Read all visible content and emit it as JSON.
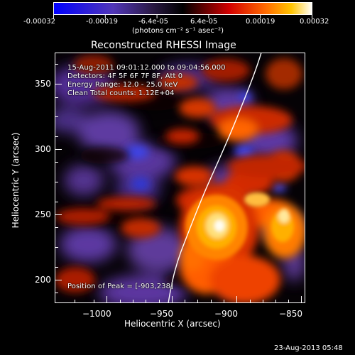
{
  "colorbar": {
    "ticks": [
      "-0.00032",
      "-0.00019",
      "-6.4e-05",
      "6.4e-05",
      "0.00019",
      "0.00032"
    ],
    "units": "(photons cm⁻² s⁻¹ asec⁻²)"
  },
  "plot": {
    "title": "Reconstructed RHESSI Image",
    "xlabel": "Heliocentric X (arcsec)",
    "ylabel": "Heliocentric Y (arcsec)",
    "x_ticks": [
      "−1000",
      "−950",
      "−900",
      "−850"
    ],
    "y_ticks": [
      "350",
      "300",
      "250",
      "200"
    ],
    "annotation": {
      "line1": "15-Aug-2011 09:01:12.000 to 09:04:56.000",
      "line2": "Detectors: 4F 5F 6F 7F 8F, Att 0",
      "line3": "Energy Range: 12.0 - 25.0 keV",
      "line4": "Clean     Total counts: 1.12E+04"
    },
    "peak_label": "Position of Peak = [-903,238]",
    "footer_date": "23-Aug-2013 05:48"
  },
  "chart_data": {
    "type": "heatmap",
    "title": "Reconstructed RHESSI Image",
    "xlabel": "Heliocentric X (arcsec)",
    "ylabel": "Heliocentric Y (arcsec)",
    "xlim": [
      -1030,
      -838
    ],
    "ylim": [
      182,
      372
    ],
    "colorbar_ticks": [
      -0.00032,
      -0.00019,
      -6.4e-05,
      6.4e-05,
      0.00019,
      0.00032
    ],
    "colorbar_range": [
      -0.00032,
      0.00032
    ],
    "peak_position": [
      -903,
      238
    ],
    "limb_color": "#ffffff",
    "colormap": [
      "#0000ff",
      "#5b3aa0",
      "#000000",
      "#ff2a00",
      "#ffb000",
      "#ffffff"
    ]
  }
}
